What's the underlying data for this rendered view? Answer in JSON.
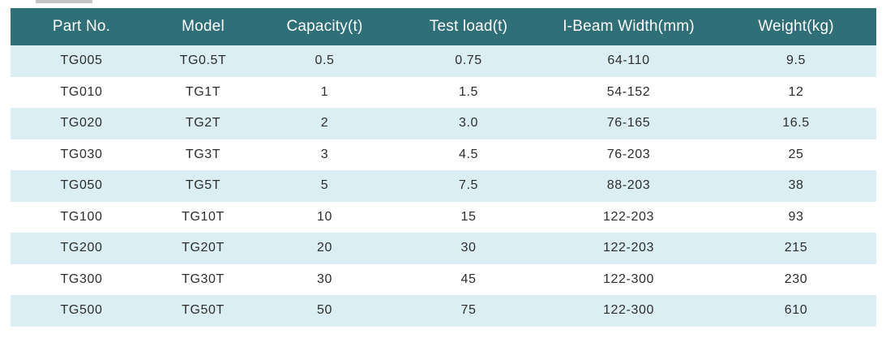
{
  "table": {
    "headers": [
      "Part No.",
      "Model",
      "Capacity(t)",
      "Test load(t)",
      "I-Beam Width(mm)",
      "Weight(kg)"
    ],
    "rows": [
      [
        "TG005",
        "TG0.5T",
        "0.5",
        "0.75",
        "64-110",
        "9.5"
      ],
      [
        "TG010",
        "TG1T",
        "1",
        "1.5",
        "54-152",
        "12"
      ],
      [
        "TG020",
        "TG2T",
        "2",
        "3.0",
        "76-165",
        "16.5"
      ],
      [
        "TG030",
        "TG3T",
        "3",
        "4.5",
        "76-203",
        "25"
      ],
      [
        "TG050",
        "TG5T",
        "5",
        "7.5",
        "88-203",
        "38"
      ],
      [
        "TG100",
        "TG10T",
        "10",
        "15",
        "122-203",
        "93"
      ],
      [
        "TG200",
        "TG20T",
        "20",
        "30",
        "122-203",
        "215"
      ],
      [
        "TG300",
        "TG30T",
        "30",
        "45",
        "122-300",
        "230"
      ],
      [
        "TG500",
        "TG50T",
        "50",
        "75",
        "122-300",
        "610"
      ]
    ]
  },
  "colors": {
    "header_bg": "#2e6f78",
    "header_text": "#ffffff",
    "row_shade": "#dbeef3",
    "row_plain": "#ffffff",
    "body_text": "#2d2d2d"
  }
}
